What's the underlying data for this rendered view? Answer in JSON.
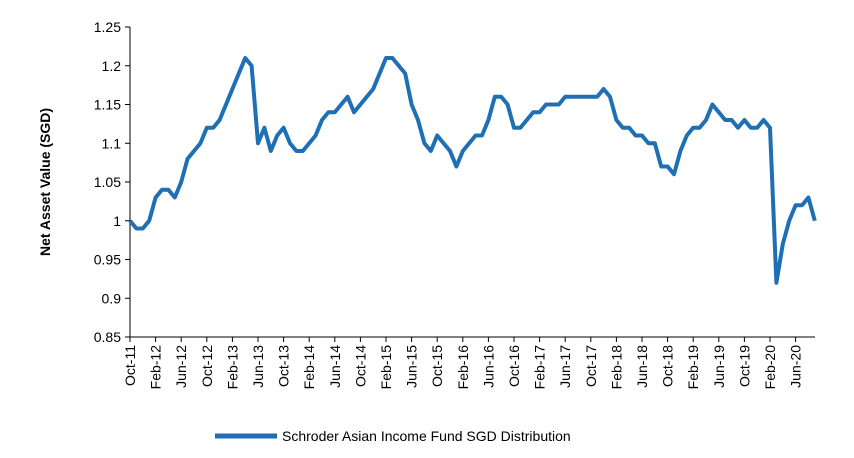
{
  "chart_data": {
    "type": "line",
    "y_label": "Net Asset Value (SGD)",
    "categories": [
      "Oct-11",
      null,
      null,
      null,
      "Feb-12",
      null,
      null,
      null,
      "Jun-12",
      null,
      null,
      null,
      "Oct-12",
      null,
      null,
      null,
      "Feb-13",
      null,
      null,
      null,
      "Jun-13",
      null,
      null,
      null,
      "Oct-13",
      null,
      null,
      null,
      "Feb-14",
      null,
      null,
      null,
      "Jun-14",
      null,
      null,
      null,
      "Oct-14",
      null,
      null,
      null,
      "Feb-15",
      null,
      null,
      null,
      "Jun-15",
      null,
      null,
      null,
      "Oct-15",
      null,
      null,
      null,
      "Feb-16",
      null,
      null,
      null,
      "Jun-16",
      null,
      null,
      null,
      "Oct-16",
      null,
      null,
      null,
      "Feb-17",
      null,
      null,
      null,
      "Jun-17",
      null,
      null,
      null,
      "Oct-17",
      null,
      null,
      null,
      "Feb-18",
      null,
      null,
      null,
      "Jun-18",
      null,
      null,
      null,
      "Oct-18",
      null,
      null,
      null,
      "Feb-19",
      null,
      null,
      null,
      "Jun-19",
      null,
      null,
      null,
      "Oct-19",
      null,
      null,
      null,
      "Feb-20",
      null,
      null,
      null,
      "Jun-20",
      null,
      null,
      null
    ],
    "series": [
      {
        "name": "Schroder Asian Income Fund SGD Distribution",
        "color": "#1f6fb4",
        "values": [
          1.0,
          0.99,
          0.99,
          1.0,
          1.03,
          1.04,
          1.04,
          1.03,
          1.05,
          1.08,
          1.09,
          1.1,
          1.12,
          1.12,
          1.13,
          1.15,
          1.17,
          1.19,
          1.21,
          1.2,
          1.1,
          1.12,
          1.09,
          1.11,
          1.12,
          1.1,
          1.09,
          1.09,
          1.1,
          1.11,
          1.13,
          1.14,
          1.14,
          1.15,
          1.16,
          1.14,
          1.15,
          1.16,
          1.17,
          1.19,
          1.21,
          1.21,
          1.2,
          1.19,
          1.15,
          1.13,
          1.1,
          1.09,
          1.11,
          1.1,
          1.09,
          1.07,
          1.09,
          1.1,
          1.11,
          1.11,
          1.13,
          1.16,
          1.16,
          1.15,
          1.12,
          1.12,
          1.13,
          1.14,
          1.14,
          1.15,
          1.15,
          1.15,
          1.16,
          1.16,
          1.16,
          1.16,
          1.16,
          1.16,
          1.17,
          1.16,
          1.13,
          1.12,
          1.12,
          1.11,
          1.11,
          1.1,
          1.1,
          1.07,
          1.07,
          1.06,
          1.09,
          1.11,
          1.12,
          1.12,
          1.13,
          1.15,
          1.14,
          1.13,
          1.13,
          1.12,
          1.13,
          1.12,
          1.12,
          1.13,
          1.12,
          0.92,
          0.97,
          1.0,
          1.02,
          1.02,
          1.03,
          1.0
        ]
      }
    ],
    "ylim": [
      0.85,
      1.25
    ],
    "yticks": [
      0.85,
      0.9,
      0.95,
      1,
      1.05,
      1.1,
      1.15,
      1.2,
      1.25
    ],
    "grid": false,
    "legend": "bottom"
  }
}
